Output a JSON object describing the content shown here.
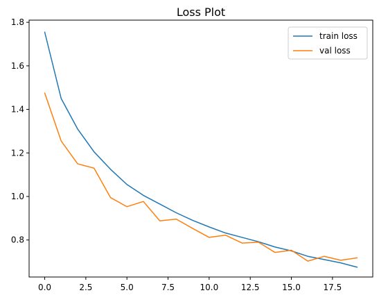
{
  "chart_data": {
    "type": "line",
    "title": "Loss Plot",
    "xlabel": "",
    "ylabel": "",
    "xlim": [
      -0.95,
      19.95
    ],
    "ylim": [
      0.63,
      1.81
    ],
    "xticks": [
      0,
      2.5,
      5,
      7.5,
      10,
      12.5,
      15,
      17.5
    ],
    "xtick_labels": [
      "0.0",
      "2.5",
      "5.0",
      "7.5",
      "10.0",
      "12.5",
      "15.0",
      "17.5"
    ],
    "yticks": [
      0.8,
      1.0,
      1.2,
      1.4,
      1.6,
      1.8
    ],
    "ytick_labels": [
      "0.8",
      "1.0",
      "1.2",
      "1.4",
      "1.6",
      "1.8"
    ],
    "grid": false,
    "legend_position": "top-right",
    "x": [
      0,
      1,
      2,
      3,
      4,
      5,
      6,
      7,
      8,
      9,
      10,
      11,
      12,
      13,
      14,
      15,
      16,
      17,
      18,
      19
    ],
    "series": [
      {
        "name": "train loss",
        "color": "#1f77b4",
        "values": [
          1.755,
          1.45,
          1.31,
          1.205,
          1.125,
          1.055,
          1.005,
          0.965,
          0.925,
          0.89,
          0.86,
          0.832,
          0.812,
          0.792,
          0.768,
          0.75,
          0.725,
          0.71,
          0.695,
          0.675
        ]
      },
      {
        "name": "val loss",
        "color": "#ff7f0e",
        "values": [
          1.475,
          1.255,
          1.15,
          1.13,
          0.995,
          0.953,
          0.977,
          0.888,
          0.896,
          0.853,
          0.812,
          0.822,
          0.786,
          0.79,
          0.743,
          0.753,
          0.703,
          0.725,
          0.707,
          0.718
        ]
      }
    ]
  }
}
